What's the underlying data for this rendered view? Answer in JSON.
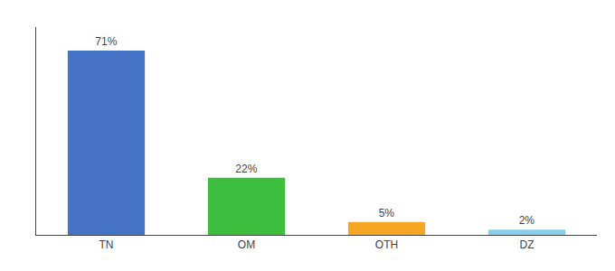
{
  "chart_data": {
    "type": "bar",
    "categories": [
      "TN",
      "OM",
      "OTH",
      "DZ"
    ],
    "values": [
      71,
      22,
      5,
      2
    ],
    "value_labels": [
      "71%",
      "22%",
      "5%",
      "2%"
    ],
    "colors": [
      "#4472c4",
      "#3dbe3d",
      "#f5a623",
      "#87ceeb"
    ],
    "ylim": [
      0,
      80
    ],
    "grid": false,
    "data_labels": true,
    "tick_labels": "x"
  }
}
